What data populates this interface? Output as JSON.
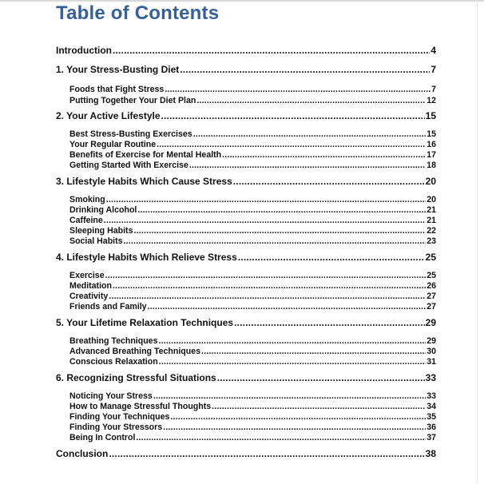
{
  "title": "Table of Contents",
  "entries": [
    {
      "level": "main",
      "label": "Introduction",
      "page": "4"
    },
    {
      "level": "main",
      "label": "1. Your Stress-Busting Diet",
      "page": "7"
    },
    {
      "level": "sub",
      "label": "Foods that Fight Stress",
      "page": "7"
    },
    {
      "level": "sub",
      "label": "Putting Together Your Diet Plan",
      "page": "12"
    },
    {
      "level": "main",
      "label": "2. Your Active Lifestyle",
      "page": "15"
    },
    {
      "level": "sub",
      "label": "Best Stress-Busting Exercises",
      "page": "15"
    },
    {
      "level": "sub",
      "label": "Your Regular Routine",
      "page": "16"
    },
    {
      "level": "sub",
      "label": "Benefits of Exercise for Mental Health",
      "page": "17"
    },
    {
      "level": "sub",
      "label": "Getting Started With Exercise",
      "page": "18"
    },
    {
      "level": "main",
      "label": "3. Lifestyle Habits Which Cause Stress",
      "page": "20"
    },
    {
      "level": "sub",
      "label": "Smoking",
      "page": "20"
    },
    {
      "level": "sub",
      "label": "Drinking Alcohol",
      "page": "21"
    },
    {
      "level": "sub",
      "label": "Caffeine",
      "page": "21"
    },
    {
      "level": "sub",
      "label": "Sleeping Habits",
      "page": "22"
    },
    {
      "level": "sub",
      "label": "Social Habits",
      "page": "23"
    },
    {
      "level": "main",
      "label": "4. Lifestyle Habits Which Relieve Stress",
      "page": "25"
    },
    {
      "level": "sub",
      "label": "Exercise",
      "page": "25"
    },
    {
      "level": "sub",
      "label": "Meditation",
      "page": "26"
    },
    {
      "level": "sub",
      "label": "Creativity",
      "page": "27"
    },
    {
      "level": "sub",
      "label": "Friends and Family",
      "page": "27"
    },
    {
      "level": "main",
      "label": "5. Your Lifetime Relaxation Techniques",
      "page": "29"
    },
    {
      "level": "sub",
      "label": "Breathing Techniques",
      "page": "29"
    },
    {
      "level": "sub",
      "label": "Advanced Breathing Techniques",
      "page": "30"
    },
    {
      "level": "sub",
      "label": "Conscious Relaxation",
      "page": "31"
    },
    {
      "level": "main",
      "label": "6. Recognizing Stressful Situations",
      "page": "33"
    },
    {
      "level": "sub",
      "label": "Noticing Your Stress",
      "page": "33"
    },
    {
      "level": "sub",
      "label": "How to Manage Stressful Thoughts",
      "page": "34"
    },
    {
      "level": "sub",
      "label": "Finding Your Techniques",
      "page": "35"
    },
    {
      "level": "sub",
      "label": "Finding Your Stressors",
      "page": "36"
    },
    {
      "level": "sub",
      "label": "Being In Control",
      "page": "37"
    },
    {
      "level": "main",
      "label": "Conclusion",
      "page": "38"
    }
  ]
}
